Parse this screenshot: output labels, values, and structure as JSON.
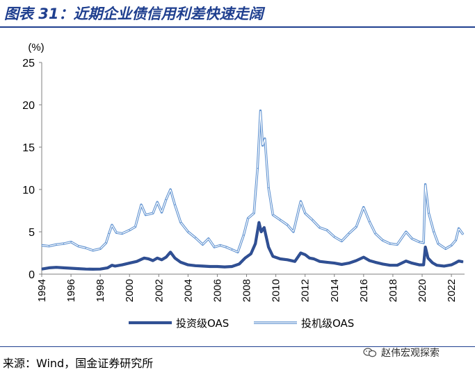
{
  "title": "图表 31：近期企业债信用利差快速走阔",
  "source": "来源：Wind，国金证券研究所",
  "watermark": {
    "text": "赵伟宏观探索",
    "icon": "wechat-icon"
  },
  "colors": {
    "accent": "#1f3f8f",
    "series1": "#2e4c8e",
    "series2": "#7ea6d8"
  },
  "chart_data": {
    "type": "line",
    "yunit": "(%)",
    "ylim": [
      0,
      25
    ],
    "yticks": [
      0,
      5,
      10,
      15,
      20,
      25
    ],
    "xlim": [
      1994,
      2022.9
    ],
    "xticks": [
      "1994",
      "1996",
      "1998",
      "2000",
      "2002",
      "2004",
      "2006",
      "2008",
      "2010",
      "2012",
      "2014",
      "2016",
      "2018",
      "2020",
      "2022"
    ],
    "grid": false,
    "legend_position": "bottom-center",
    "series": [
      {
        "name": "投资级OAS",
        "style": "double",
        "points": [
          [
            1994.0,
            0.6
          ],
          [
            1994.5,
            0.75
          ],
          [
            1995.0,
            0.8
          ],
          [
            1995.5,
            0.75
          ],
          [
            1996.0,
            0.7
          ],
          [
            1996.5,
            0.65
          ],
          [
            1997.0,
            0.6
          ],
          [
            1997.5,
            0.58
          ],
          [
            1998.0,
            0.6
          ],
          [
            1998.5,
            0.75
          ],
          [
            1998.8,
            1.05
          ],
          [
            1999.0,
            0.95
          ],
          [
            1999.5,
            1.1
          ],
          [
            2000.0,
            1.3
          ],
          [
            2000.5,
            1.5
          ],
          [
            2001.0,
            1.9
          ],
          [
            2001.3,
            1.8
          ],
          [
            2001.6,
            1.6
          ],
          [
            2001.9,
            1.9
          ],
          [
            2002.2,
            1.7
          ],
          [
            2002.5,
            2.0
          ],
          [
            2002.8,
            2.6
          ],
          [
            2003.1,
            1.9
          ],
          [
            2003.5,
            1.4
          ],
          [
            2004.0,
            1.1
          ],
          [
            2004.5,
            1.0
          ],
          [
            2005.0,
            0.95
          ],
          [
            2005.5,
            0.9
          ],
          [
            2006.0,
            0.9
          ],
          [
            2006.5,
            0.85
          ],
          [
            2007.0,
            0.9
          ],
          [
            2007.5,
            1.2
          ],
          [
            2007.9,
            1.9
          ],
          [
            2008.3,
            2.4
          ],
          [
            2008.6,
            3.6
          ],
          [
            2008.85,
            6.1
          ],
          [
            2009.0,
            5.0
          ],
          [
            2009.2,
            5.5
          ],
          [
            2009.5,
            3.2
          ],
          [
            2009.8,
            2.1
          ],
          [
            2010.3,
            1.8
          ],
          [
            2010.8,
            1.7
          ],
          [
            2011.3,
            1.5
          ],
          [
            2011.7,
            2.5
          ],
          [
            2012.0,
            2.3
          ],
          [
            2012.3,
            1.9
          ],
          [
            2012.6,
            1.8
          ],
          [
            2013.0,
            1.5
          ],
          [
            2013.5,
            1.4
          ],
          [
            2014.0,
            1.3
          ],
          [
            2014.5,
            1.15
          ],
          [
            2015.0,
            1.3
          ],
          [
            2015.5,
            1.6
          ],
          [
            2016.0,
            2.0
          ],
          [
            2016.4,
            1.6
          ],
          [
            2016.8,
            1.4
          ],
          [
            2017.3,
            1.2
          ],
          [
            2017.8,
            1.05
          ],
          [
            2018.3,
            1.05
          ],
          [
            2018.9,
            1.55
          ],
          [
            2019.3,
            1.3
          ],
          [
            2019.8,
            1.1
          ],
          [
            2020.1,
            1.1
          ],
          [
            2020.22,
            3.2
          ],
          [
            2020.4,
            1.9
          ],
          [
            2020.7,
            1.35
          ],
          [
            2021.0,
            1.05
          ],
          [
            2021.5,
            0.95
          ],
          [
            2022.0,
            1.1
          ],
          [
            2022.3,
            1.35
          ],
          [
            2022.5,
            1.55
          ],
          [
            2022.8,
            1.45
          ]
        ]
      },
      {
        "name": "投机级OAS",
        "style": "outline",
        "points": [
          [
            1994.0,
            3.4
          ],
          [
            1994.5,
            3.3
          ],
          [
            1995.0,
            3.5
          ],
          [
            1995.5,
            3.6
          ],
          [
            1996.0,
            3.8
          ],
          [
            1996.5,
            3.3
          ],
          [
            1997.0,
            3.1
          ],
          [
            1997.5,
            2.8
          ],
          [
            1998.0,
            3.0
          ],
          [
            1998.4,
            3.7
          ],
          [
            1998.6,
            4.8
          ],
          [
            1998.8,
            5.8
          ],
          [
            1999.1,
            4.9
          ],
          [
            1999.5,
            4.8
          ],
          [
            2000.0,
            5.2
          ],
          [
            2000.4,
            5.6
          ],
          [
            2000.8,
            8.2
          ],
          [
            2001.1,
            7.0
          ],
          [
            2001.6,
            7.2
          ],
          [
            2001.9,
            8.5
          ],
          [
            2002.2,
            7.3
          ],
          [
            2002.5,
            8.8
          ],
          [
            2002.8,
            10.0
          ],
          [
            2003.1,
            8.2
          ],
          [
            2003.5,
            6.1
          ],
          [
            2004.0,
            5.0
          ],
          [
            2004.5,
            4.3
          ],
          [
            2005.0,
            3.5
          ],
          [
            2005.4,
            4.2
          ],
          [
            2005.8,
            3.2
          ],
          [
            2006.2,
            3.4
          ],
          [
            2006.6,
            3.2
          ],
          [
            2007.0,
            2.9
          ],
          [
            2007.4,
            2.6
          ],
          [
            2007.8,
            4.6
          ],
          [
            2008.1,
            6.6
          ],
          [
            2008.5,
            7.2
          ],
          [
            2008.75,
            12.5
          ],
          [
            2008.95,
            19.3
          ],
          [
            2009.1,
            15.2
          ],
          [
            2009.25,
            16.0
          ],
          [
            2009.5,
            10.2
          ],
          [
            2009.8,
            7.0
          ],
          [
            2010.3,
            6.4
          ],
          [
            2010.8,
            5.8
          ],
          [
            2011.2,
            5.0
          ],
          [
            2011.7,
            8.6
          ],
          [
            2012.0,
            7.2
          ],
          [
            2012.5,
            6.4
          ],
          [
            2013.0,
            5.5
          ],
          [
            2013.5,
            5.2
          ],
          [
            2014.0,
            4.4
          ],
          [
            2014.5,
            3.9
          ],
          [
            2015.0,
            4.8
          ],
          [
            2015.5,
            5.6
          ],
          [
            2016.0,
            7.9
          ],
          [
            2016.4,
            6.2
          ],
          [
            2016.8,
            4.8
          ],
          [
            2017.3,
            4.0
          ],
          [
            2017.8,
            3.6
          ],
          [
            2018.3,
            3.5
          ],
          [
            2018.9,
            5.0
          ],
          [
            2019.3,
            4.2
          ],
          [
            2019.8,
            3.8
          ],
          [
            2020.1,
            3.7
          ],
          [
            2020.22,
            10.6
          ],
          [
            2020.45,
            7.2
          ],
          [
            2020.8,
            5.0
          ],
          [
            2021.1,
            3.6
          ],
          [
            2021.6,
            3.0
          ],
          [
            2022.0,
            3.4
          ],
          [
            2022.3,
            4.0
          ],
          [
            2022.5,
            5.4
          ],
          [
            2022.8,
            4.7
          ]
        ]
      }
    ]
  }
}
